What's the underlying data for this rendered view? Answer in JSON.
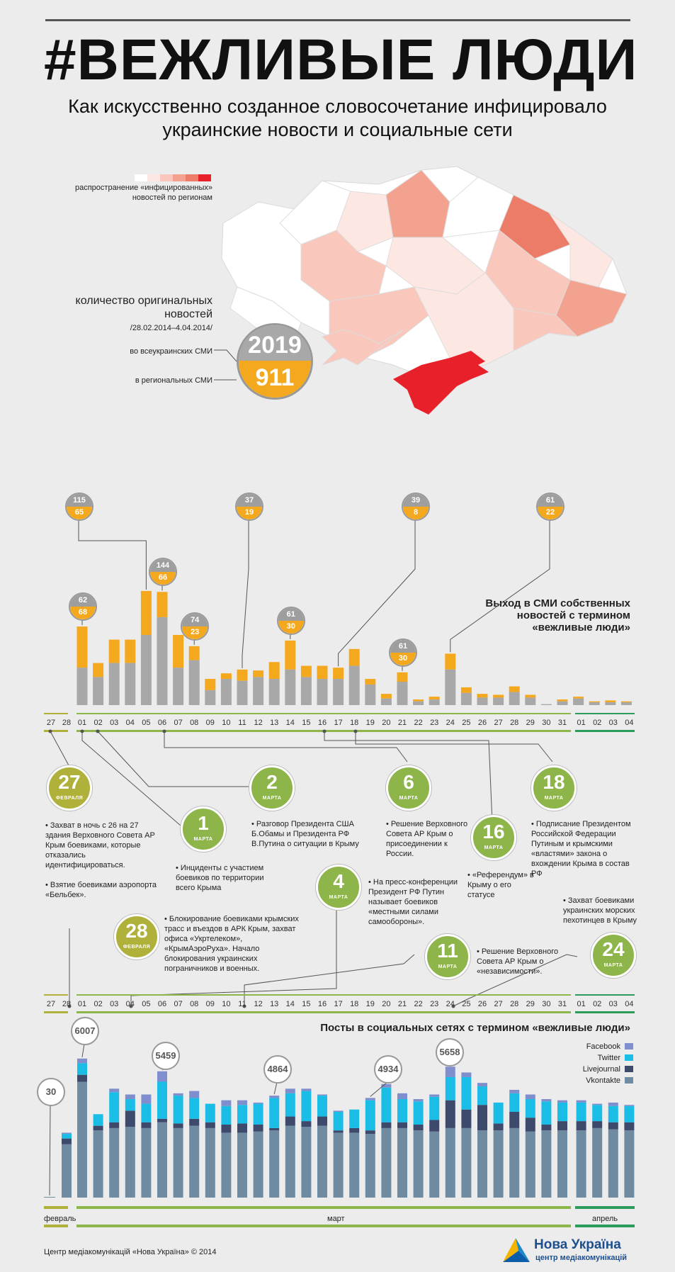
{
  "header": {
    "title": "#ВЕЖЛИВЫЕ ЛЮДИ",
    "subtitle": "Как искусственно созданное словосочетание инфицировало украинские новости и социальные сети"
  },
  "map_legend": {
    "label": "распространение «инфицированных» новостей по регионам",
    "colors": [
      "#ffffff",
      "#fde7e2",
      "#f9c7bb",
      "#f3a28f",
      "#ec7b68",
      "#e8202a"
    ]
  },
  "totals": {
    "label": "количество оригинальных новостей",
    "period": "/28.02.2014–4.04.2014/",
    "national_label": "во всеукраинских СМИ",
    "national_value": "2019",
    "regional_label": "в региональных СМИ",
    "regional_value": "911"
  },
  "colors": {
    "gray": "#a8a8a8",
    "orange": "#f4a81d",
    "green": "#8db54a",
    "olive": "#b0b13a",
    "teal": "#2a9d5c",
    "vk": "#6e8ba1",
    "lj": "#3e4a6b",
    "tw": "#19bde6",
    "fb": "#7f8fce"
  },
  "media_title": "Выход в СМИ собственных новостей с термином «вежливые люди»",
  "chart_data": [
    {
      "type": "bar",
      "title": "Выход в СМИ собственных новостей с термином «вежливые люди»",
      "categories": [
        "27",
        "28",
        "01",
        "02",
        "03",
        "04",
        "05",
        "06",
        "07",
        "08",
        "09",
        "10",
        "11",
        "12",
        "13",
        "14",
        "15",
        "16",
        "17",
        "18",
        "19",
        "20",
        "21",
        "22",
        "23",
        "24",
        "25",
        "26",
        "27",
        "28",
        "29",
        "30",
        "31",
        "01",
        "02",
        "03",
        "04"
      ],
      "series": [
        {
          "name": "",
          "values": [
            0,
            0,
            40,
            30,
            45,
            45,
            75,
            94,
            40,
            48,
            16,
            28,
            26,
            30,
            28,
            38,
            30,
            28,
            28,
            42,
            22,
            7,
            25,
            4,
            6,
            38,
            13,
            8,
            8,
            14,
            8,
            1,
            4,
            7,
            3,
            3,
            3
          ]
        },
        {
          "name": "",
          "values": [
            0,
            0,
            44,
            15,
            25,
            25,
            47,
            27,
            35,
            15,
            12,
            6,
            12,
            7,
            18,
            31,
            12,
            14,
            12,
            18,
            6,
            5,
            10,
            2,
            3,
            17,
            6,
            4,
            3,
            6,
            3,
            0,
            2,
            2,
            1,
            2,
            1
          ]
        }
      ],
      "callouts": [
        {
          "day": "01",
          "national": "62",
          "regional": "68"
        },
        {
          "day": "05",
          "national": "115",
          "regional": "65"
        },
        {
          "day": "06",
          "national": "144",
          "regional": "66"
        },
        {
          "day": "08",
          "national": "74",
          "regional": "23"
        },
        {
          "day": "11",
          "national": "37",
          "regional": "19"
        },
        {
          "day": "14",
          "national": "61",
          "regional": "30"
        },
        {
          "day": "17",
          "national": "39",
          "regional": "8"
        },
        {
          "day": "21",
          "national": "61",
          "regional": "30"
        },
        {
          "day": "24",
          "national": "61",
          "regional": "22"
        }
      ]
    },
    {
      "type": "bar",
      "title": "Посты в социальных сетях с термином «вежливые люди»",
      "categories": [
        "февраль",
        "",
        "01",
        "02",
        "03",
        "04",
        "05",
        "06",
        "07",
        "08",
        "09",
        "10",
        "11",
        "12",
        "13",
        "14",
        "15",
        "16",
        "17",
        "18",
        "19",
        "20",
        "21",
        "22",
        "23",
        "24",
        "25",
        "26",
        "27",
        "28",
        "29",
        "30",
        "31",
        "01",
        "02",
        "03",
        "04"
      ],
      "series": [
        {
          "name": "Vkontakte",
          "values": [
            30,
            2300,
            5000,
            2900,
            3000,
            3050,
            3000,
            3250,
            3000,
            3100,
            3000,
            2800,
            2800,
            2850,
            2900,
            3100,
            3050,
            3100,
            2800,
            2800,
            2750,
            3000,
            3000,
            2900,
            2850,
            3000,
            3000,
            2900,
            2900,
            3000,
            2850,
            2900,
            2900,
            2900,
            3000,
            2950,
            2900
          ]
        },
        {
          "name": "Livejournal",
          "values": [
            0,
            250,
            300,
            200,
            250,
            700,
            250,
            150,
            200,
            300,
            250,
            350,
            400,
            300,
            100,
            400,
            250,
            400,
            100,
            200,
            150,
            250,
            250,
            250,
            500,
            1200,
            800,
            1100,
            300,
            700,
            600,
            250,
            400,
            400,
            300,
            300,
            350
          ]
        },
        {
          "name": "Twitter",
          "values": [
            0,
            200,
            500,
            500,
            1300,
            500,
            800,
            1600,
            1200,
            900,
            800,
            800,
            800,
            900,
            1300,
            1000,
            1300,
            900,
            800,
            800,
            1300,
            1500,
            1000,
            1000,
            1000,
            1000,
            1400,
            800,
            900,
            800,
            800,
            1000,
            800,
            800,
            700,
            700,
            700
          ]
        },
        {
          "name": "Facebook",
          "values": [
            0,
            50,
            200,
            0,
            150,
            200,
            400,
            450,
            100,
            300,
            0,
            250,
            200,
            50,
            100,
            200,
            100,
            50,
            50,
            0,
            100,
            150,
            250,
            100,
            100,
            450,
            200,
            150,
            0,
            150,
            200,
            100,
            100,
            100,
            50,
            150,
            50
          ]
        }
      ],
      "callouts": [
        "30",
        "6007",
        "5459",
        "4864",
        "4934",
        "5658"
      ]
    }
  ],
  "day_labels": [
    "27",
    "28",
    "01",
    "02",
    "03",
    "04",
    "05",
    "06",
    "07",
    "08",
    "09",
    "10",
    "11",
    "12",
    "13",
    "14",
    "15",
    "16",
    "17",
    "18",
    "19",
    "20",
    "21",
    "22",
    "23",
    "24",
    "25",
    "26",
    "27",
    "28",
    "29",
    "30",
    "31",
    "01",
    "02",
    "03",
    "04"
  ],
  "events": [
    {
      "num": "27",
      "month": "ФЕВРАЛЯ",
      "text": "• Захват в ночь с 26 на 27 здания Верховного Совета АР Крым боевиками, которые отказались идентифицироваться.\n\n• Взятие боевиками аэропорта «Бельбек»."
    },
    {
      "num": "28",
      "month": "ФЕВРАЛЯ",
      "text": "• Блокирование боевиками крымских трасс и въездов в АРК Крым, захват офиса «Укртелеком», «КрымАэроРуха». Начало блокирования украинских пограничников и военных."
    },
    {
      "num": "1",
      "month": "МАРТА",
      "text": "• Инциденты с участием боевиков по территории всего Крыма"
    },
    {
      "num": "2",
      "month": "МАРТА",
      "text": "• Разговор Президента США Б.Обамы и Президента РФ В.Путина о ситуации в Крыму"
    },
    {
      "num": "4",
      "month": "МАРТА",
      "text": "• На пресс-конференции Президент РФ Путин называет боевиков «местными силами самообороны»."
    },
    {
      "num": "6",
      "month": "МАРТА",
      "text": "• Решение Верховного Совета АР Крым о присоединении к России."
    },
    {
      "num": "11",
      "month": "МАРТА",
      "text": "• Решение Верховного Совета АР Крым о «независимости»."
    },
    {
      "num": "16",
      "month": "МАРТА",
      "text": "• «Референдум» в Крыму о его статусе"
    },
    {
      "num": "18",
      "month": "МАРТА",
      "text": "• Подписание Президентом Российской Федерации Путиным и крымскими «властями» закона о вхождении Крыма в состав РФ"
    },
    {
      "num": "24",
      "month": "МАРТА",
      "text": "• Захват боевиками украинских морских пехотинцев в Крыму"
    }
  ],
  "social_title": "Посты в социальных сетях с термином «вежливые люди»",
  "months": {
    "feb": "февраль",
    "mar": "март",
    "apr": "апрель"
  },
  "footer": {
    "copy": "Центр медіакомунікацій «Нова Україна» © 2014",
    "brand": "Нова Україна",
    "brand_sub": "центр медіакомунікацій"
  }
}
